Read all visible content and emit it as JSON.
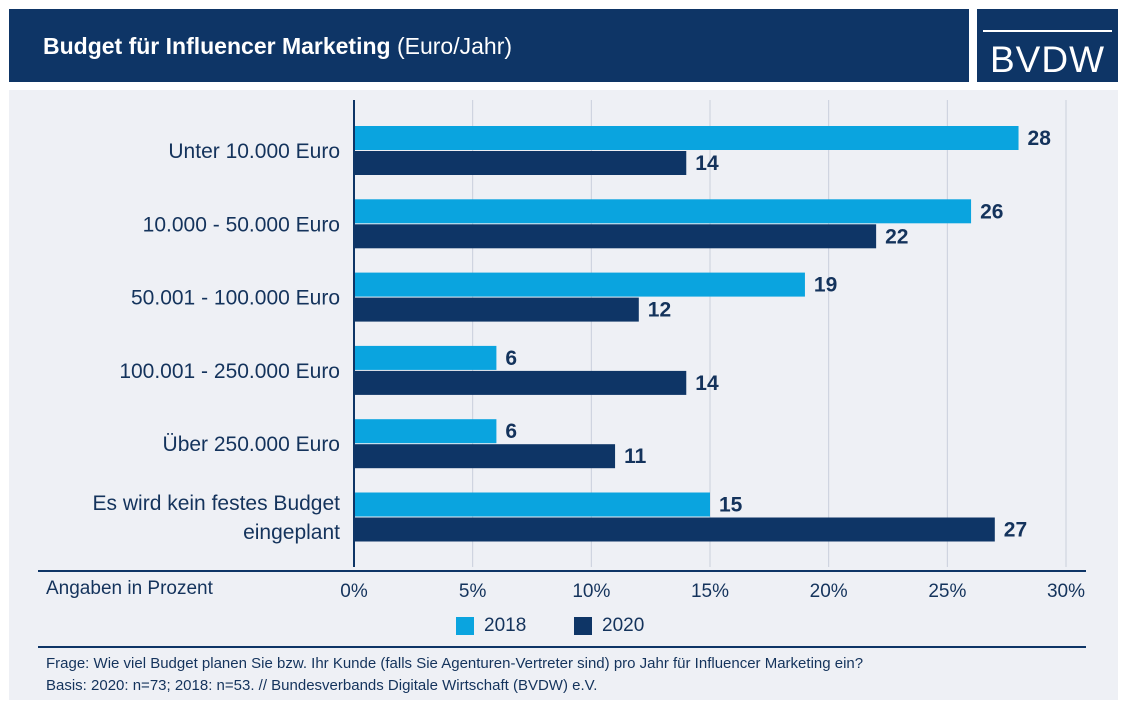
{
  "header": {
    "title_bold": "Budget für Influencer Marketing",
    "title_unit": "(Euro/Jahr)",
    "logo": "BVDW"
  },
  "axis_note": "Angaben in Prozent",
  "footer": {
    "question_label": "Frage:",
    "question": "Wie viel Budget planen Sie bzw. Ihr Kunde (falls Sie Agenturen-Vertreter sind) pro Jahr für Influencer Marketing ein?",
    "basis": "Basis: 2020: n=73; 2018: n=53. // Bundesverbands Digitale Wirtschaft (BVDW) e.V."
  },
  "colors": {
    "header_bg": "#0e3566",
    "series_2018": "#0aa4df",
    "series_2020": "#0e3566",
    "panel_bg": "#eef0f5"
  },
  "chart_data": {
    "type": "bar",
    "orientation": "horizontal",
    "title": "Budget für Influencer Marketing (Euro/Jahr)",
    "categories": [
      [
        "Unter 10.000 Euro"
      ],
      [
        "10.000 - 50.000 Euro"
      ],
      [
        "50.001 - 100.000 Euro"
      ],
      [
        "100.001 - 250.000 Euro"
      ],
      [
        "Über 250.000 Euro"
      ],
      [
        "Es wird kein festes Budget",
        "eingeplant"
      ]
    ],
    "series": [
      {
        "name": "2018",
        "color": "#0aa4df",
        "values": [
          28,
          26,
          19,
          6,
          6,
          15
        ]
      },
      {
        "name": "2020",
        "color": "#0e3566",
        "values": [
          14,
          22,
          12,
          14,
          11,
          27
        ]
      }
    ],
    "xlim": [
      0,
      30
    ],
    "xticks": [
      0,
      5,
      10,
      15,
      20,
      25,
      30
    ],
    "xtick_labels": [
      "0%",
      "5%",
      "10%",
      "15%",
      "20%",
      "25%",
      "30%"
    ],
    "xlabel": "Angaben in Prozent",
    "grid": true,
    "legend": "bottom-center"
  }
}
